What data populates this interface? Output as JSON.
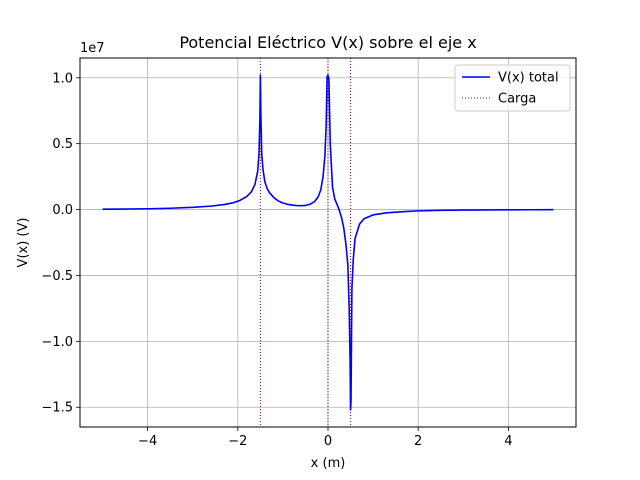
{
  "chart_data": {
    "type": "line",
    "title": "Potencial Eléctrico V(x) sobre el eje x",
    "xlabel": "x (m)",
    "ylabel": "V(x) (V)",
    "offset_text": "1e7",
    "y_scale_exponent": 7,
    "xlim": [
      -5.5,
      5.5
    ],
    "ylim": [
      -16500000,
      11500000
    ],
    "xticks": [
      -4,
      -2,
      0,
      2,
      4
    ],
    "xtick_labels": [
      "−4",
      "−2",
      "0",
      "2",
      "4"
    ],
    "yticks": [
      -15000000,
      -10000000,
      -5000000,
      0,
      5000000,
      10000000
    ],
    "ytick_labels": [
      "−1.5",
      "−1.0",
      "−0.5",
      "0.0",
      "0.5",
      "1.0"
    ],
    "grid": true,
    "legend_position": "upper right",
    "series": [
      {
        "name": "V(x) total",
        "color": "#0000ff",
        "style": "solid",
        "x": [
          -5.0,
          -4.5,
          -4.0,
          -3.5,
          -3.0,
          -2.6,
          -2.3,
          -2.1,
          -1.95,
          -1.8,
          -1.7,
          -1.62,
          -1.56,
          -1.53,
          -1.51,
          -1.5,
          -1.49,
          -1.47,
          -1.44,
          -1.4,
          -1.35,
          -1.3,
          -1.2,
          -1.1,
          -1.0,
          -0.9,
          -0.8,
          -0.7,
          -0.6,
          -0.5,
          -0.4,
          -0.3,
          -0.22,
          -0.16,
          -0.11,
          -0.07,
          -0.04,
          -0.02,
          0.0,
          0.02,
          0.05,
          0.1,
          0.15,
          0.2,
          0.25,
          0.3,
          0.35,
          0.4,
          0.44,
          0.47,
          0.49,
          0.5,
          0.51,
          0.53,
          0.56,
          0.6,
          0.7,
          0.8,
          1.0,
          1.3,
          1.7,
          2.0,
          2.5,
          3.0,
          3.5,
          4.0,
          4.5,
          5.0
        ],
        "y": [
          30000,
          40000,
          60000,
          100000,
          170000,
          260000,
          380000,
          520000,
          700000,
          1000000,
          1350000,
          1900000,
          2900000,
          4200000,
          7000000,
          10200000,
          7500000,
          4200000,
          3000000,
          2100000,
          1600000,
          1300000,
          900000,
          650000,
          500000,
          400000,
          340000,
          300000,
          290000,
          310000,
          400000,
          600000,
          950000,
          1500000,
          2500000,
          4000000,
          6500000,
          10100000,
          10200000,
          9900000,
          5000000,
          1700000,
          800000,
          400000,
          -50000,
          -600000,
          -1400000,
          -2700000,
          -4200000,
          -7500000,
          -11500000,
          -15200000,
          -14500000,
          -6000000,
          -3800000,
          -2200000,
          -1100000,
          -700000,
          -400000,
          -250000,
          -150000,
          -100000,
          -60000,
          -40000,
          -30000,
          -20000,
          -15000,
          -10000
        ]
      },
      {
        "name": "Carga",
        "color": "#800080",
        "style": "dotted",
        "vlines": [
          -1.5,
          0.0,
          0.5
        ]
      }
    ]
  }
}
